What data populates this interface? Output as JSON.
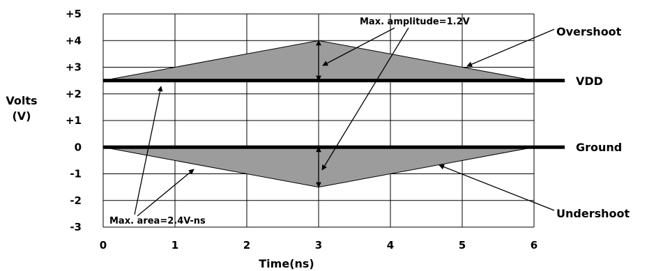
{
  "chart_data": {
    "type": "area",
    "xlabel": "Time(ns)",
    "ylabel_line1": "Volts",
    "ylabel_line2": "(V)",
    "xlim": [
      0,
      6
    ],
    "ylim": [
      -3,
      5
    ],
    "grid": true,
    "x_ticks": [
      "0",
      "1",
      "2",
      "3",
      "4",
      "5",
      "6"
    ],
    "y_ticks": [
      "+5",
      "+4",
      "+3",
      "+2",
      "+1",
      "0",
      "-1",
      "-2",
      "-3"
    ],
    "reference_lines": [
      {
        "name": "VDD",
        "y": 2.5
      },
      {
        "name": "Ground",
        "y": 0
      }
    ],
    "series": [
      {
        "name": "Overshoot",
        "x": [
          0,
          3,
          6
        ],
        "y": [
          2.5,
          4,
          2.5
        ],
        "base": 2.5
      },
      {
        "name": "Undershoot",
        "x": [
          0,
          3,
          6
        ],
        "y": [
          0,
          -1.5,
          0
        ],
        "base": 0
      }
    ],
    "annotations": {
      "max_amplitude": "Max. amplitude=1.2V",
      "max_area": "Max. area=2.4V-ns"
    },
    "colors": {
      "fill": "#9c9c9c",
      "line": "#000000",
      "grid": "#000000"
    }
  }
}
